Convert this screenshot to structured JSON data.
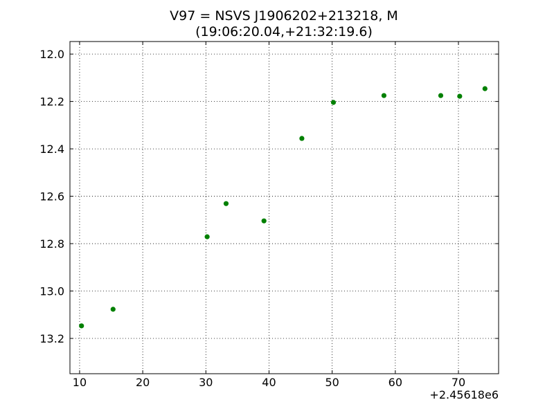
{
  "chart_data": {
    "type": "scatter",
    "title": "V97 = NSVS J1906202+213218, M",
    "subtitle": "(19:06:20.04,+21:32:19.6)",
    "x_offset_label": "+2.45618e6",
    "x": [
      10.3,
      15.3,
      30.2,
      33.2,
      39.2,
      45.2,
      50.2,
      58.2,
      67.2,
      70.2,
      74.2
    ],
    "series": [
      {
        "name": "V97",
        "color": "#008000",
        "values": [
          13.147,
          13.077,
          12.771,
          12.631,
          12.704,
          12.356,
          12.204,
          12.175,
          12.175,
          12.178,
          12.146
        ]
      }
    ],
    "xlim": [
      8.47,
      76.36
    ],
    "xticks": [
      10,
      20,
      30,
      40,
      50,
      60,
      70
    ],
    "ylim": [
      11.947,
      13.349
    ],
    "y_inverted": true,
    "yticks": [
      {
        "value": 12,
        "label": "12.0"
      },
      12.2,
      12.4,
      12.6,
      12.8,
      {
        "value": 13,
        "label": "13.0"
      },
      13.2
    ],
    "grid": true
  }
}
